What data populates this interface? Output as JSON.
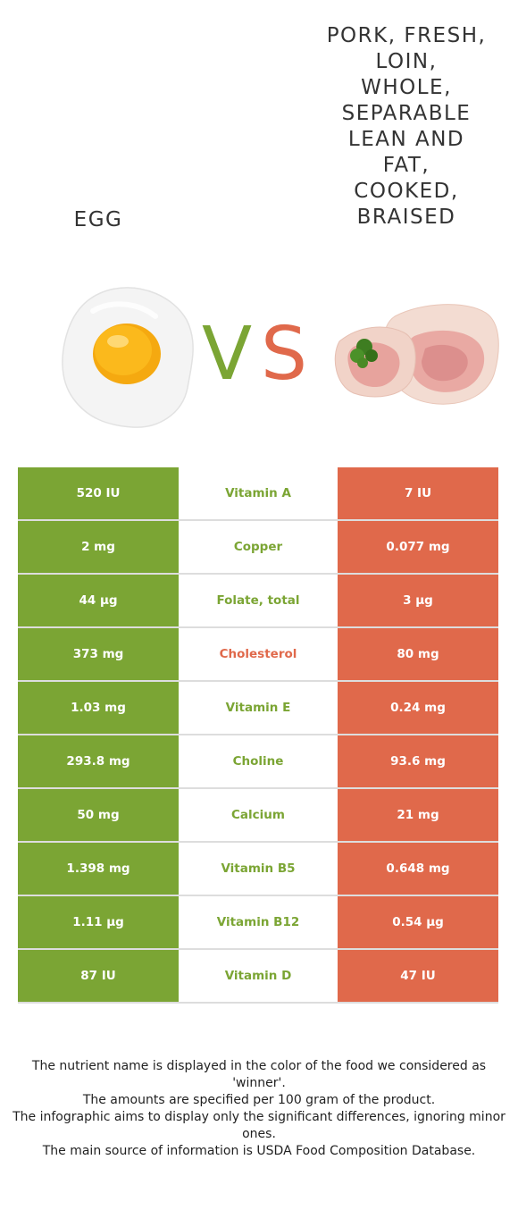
{
  "header": {
    "left_title": "EGG",
    "right_title": "PORK, FRESH,\nLOIN,\nWHOLE,\nSEPARABLE\nLEAN AND\nFAT,\nCOOKED,\nBRAISED"
  },
  "vs": {
    "v": "V",
    "s": "S"
  },
  "colors": {
    "left": "#7ba534",
    "right": "#e0694b"
  },
  "images": {
    "left": "fried-egg-illustration",
    "right": "pork-loin-chop-illustration"
  },
  "rows": [
    {
      "left": "520 IU",
      "nutrient": "Vitamin A",
      "right": "7 IU",
      "winner": "left"
    },
    {
      "left": "2 mg",
      "nutrient": "Copper",
      "right": "0.077 mg",
      "winner": "left"
    },
    {
      "left": "44 µg",
      "nutrient": "Folate, total",
      "right": "3 µg",
      "winner": "left"
    },
    {
      "left": "373 mg",
      "nutrient": "Cholesterol",
      "right": "80 mg",
      "winner": "right"
    },
    {
      "left": "1.03 mg",
      "nutrient": "Vitamin E",
      "right": "0.24 mg",
      "winner": "left"
    },
    {
      "left": "293.8 mg",
      "nutrient": "Choline",
      "right": "93.6 mg",
      "winner": "left"
    },
    {
      "left": "50 mg",
      "nutrient": "Calcium",
      "right": "21 mg",
      "winner": "left"
    },
    {
      "left": "1.398 mg",
      "nutrient": "Vitamin B5",
      "right": "0.648 mg",
      "winner": "left"
    },
    {
      "left": "1.11 µg",
      "nutrient": "Vitamin B12",
      "right": "0.54 µg",
      "winner": "left"
    },
    {
      "left": "87 IU",
      "nutrient": "Vitamin D",
      "right": "47 IU",
      "winner": "left"
    }
  ],
  "footnotes": [
    "The nutrient name is displayed in the color of the food we considered as 'winner'.",
    "The amounts are specified per 100 gram of the product.",
    "The infographic aims to display only the significant differences, ignoring minor ones.",
    "The main source of information is USDA Food Composition Database."
  ]
}
